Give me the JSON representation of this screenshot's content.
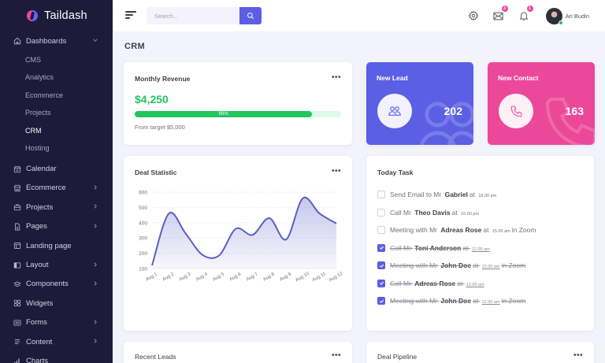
{
  "app": {
    "name": "Taildash"
  },
  "sidebar": {
    "dashboards": {
      "label": "Dashboards",
      "children": [
        "CMS",
        "Analytics",
        "Ecommerce",
        "Projects",
        "CRM",
        "Hosting"
      ],
      "active": "CRM"
    },
    "items": [
      {
        "label": "Calendar",
        "icon": "calendar-icon",
        "has_children": false
      },
      {
        "label": "Ecommerce",
        "icon": "store-icon",
        "has_children": true
      },
      {
        "label": "Projects",
        "icon": "briefcase-icon",
        "has_children": true
      },
      {
        "label": "Pages",
        "icon": "document-icon",
        "has_children": true
      },
      {
        "label": "Landing page",
        "icon": "browser-icon",
        "has_children": false
      },
      {
        "label": "Layout",
        "icon": "layout-icon",
        "has_children": true
      },
      {
        "label": "Components",
        "icon": "components-icon",
        "has_children": true
      },
      {
        "label": "Widgets",
        "icon": "widgets-icon",
        "has_children": false
      },
      {
        "label": "Forms",
        "icon": "form-icon",
        "has_children": true
      },
      {
        "label": "Content",
        "icon": "content-icon",
        "has_children": true
      },
      {
        "label": "Charts",
        "icon": "chart-icon",
        "has_children": false
      }
    ]
  },
  "topbar": {
    "search_placeholder": "Search...",
    "messages_count": "3",
    "notifications_count": "1",
    "user_name": "Ari Budin"
  },
  "page": {
    "title": "CRM"
  },
  "revenue": {
    "title": "Monthly Revenue",
    "amount": "$4,250",
    "progress_pct": 86,
    "progress_label": "86%",
    "target": "From target $5,000"
  },
  "new_lead": {
    "title": "New Lead",
    "value": "202",
    "color": "#5b5fe3"
  },
  "new_contact": {
    "title": "New Contact",
    "value": "163",
    "color": "#ec4899"
  },
  "deal_statistic": {
    "title": "Deal Statistic"
  },
  "chart_data": {
    "type": "area",
    "title": "Deal Statistic",
    "categories": [
      "Aug 1",
      "Aug 2",
      "Aug 3",
      "Aug 4",
      "Aug 5",
      "Aug 6",
      "Aug 7",
      "Aug 8",
      "Aug 9",
      "Aug 10",
      "Aug 11",
      "Aug 12"
    ],
    "values": [
      120,
      460,
      330,
      190,
      185,
      360,
      320,
      430,
      290,
      560,
      460,
      395
    ],
    "yticks": [
      100,
      200,
      300,
      400,
      500,
      600
    ],
    "ylim": [
      100,
      600
    ],
    "xlabel": "",
    "ylabel": "",
    "grid": true,
    "color": "#5b5fc7"
  },
  "today_task": {
    "title": "Today Task",
    "tasks": [
      {
        "pre": "Send Email to Mr",
        "name": "Gabriel",
        "mid": "at",
        "time": "18.00 pm",
        "post": "",
        "done": false
      },
      {
        "pre": "Call Mr",
        "name": "Theo Davis",
        "mid": "at",
        "time": "16.00 pm",
        "post": "",
        "done": false
      },
      {
        "pre": "Meeting with Mr",
        "name": "Adreas Rose",
        "mid": "at",
        "time": "15.00 am",
        "post": "in Zoom",
        "done": false
      },
      {
        "pre": "Call Mr",
        "name": "Toni Anderson",
        "mid": "at",
        "time": "12.00 am",
        "post": "",
        "done": true
      },
      {
        "pre": "Meeting with Mr",
        "name": "John Doe",
        "mid": "at",
        "time": "12.00 am",
        "post": "in Zoom",
        "done": true
      },
      {
        "pre": "Call Mr",
        "name": "Adreas Rose",
        "mid": "at",
        "time": "12.00 am",
        "post": "",
        "done": true
      },
      {
        "pre": "Meeting with Mr",
        "name": "John Doe",
        "mid": "at",
        "time": "12.00 am",
        "post": "in Zoom",
        "done": true
      }
    ]
  },
  "recent_leads": {
    "title": "Recent Leads"
  },
  "deal_pipeline": {
    "title": "Deal Pipeline"
  },
  "more_label": "•••"
}
